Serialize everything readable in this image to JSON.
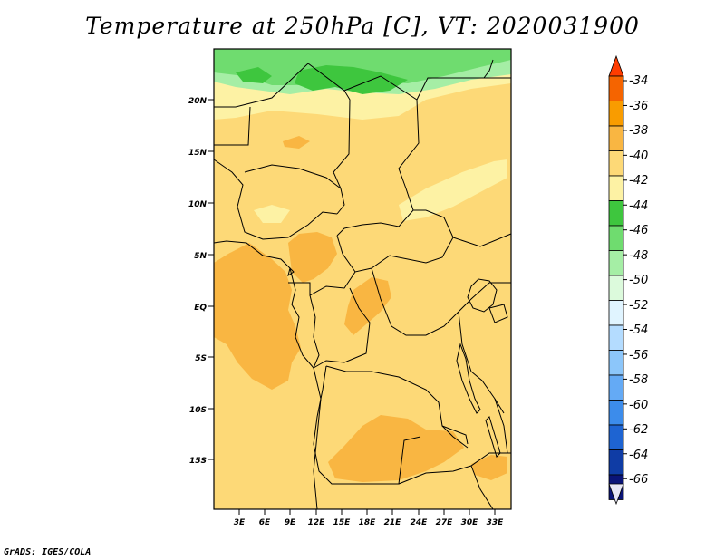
{
  "title": "Temperature at 250hPa [C], VT: 2020031900",
  "footer": "GrADS: IGES/COLA",
  "map": {
    "y_ticks": [
      "20N",
      "15N",
      "10N",
      "5N",
      "EQ",
      "5S",
      "10S",
      "15S"
    ],
    "x_ticks": [
      "3E",
      "6E",
      "9E",
      "12E",
      "15E",
      "18E",
      "21E",
      "24E",
      "27E",
      "30E",
      "33E"
    ],
    "colors": {
      "background": "#fdd977",
      "orange": "#f9b642",
      "pale_yellow": "#fdf2a4",
      "green_dark": "#3ec63e",
      "green": "#6fdc6f",
      "green_light": "#a5eea5"
    }
  },
  "colorbar": {
    "labels": [
      "-34",
      "-36",
      "-38",
      "-40",
      "-42",
      "-44",
      "-46",
      "-48",
      "-50",
      "-52",
      "-54",
      "-56",
      "-58",
      "-60",
      "-62",
      "-64",
      "-66"
    ],
    "top_color": "#ff3c00",
    "bottom_color": "#e6e6f5",
    "colors": [
      "#f56400",
      "#f99c00",
      "#f9b642",
      "#fdd977",
      "#fdf2a4",
      "#3ec63e",
      "#6fdc6f",
      "#a5eea5",
      "#dcfadc",
      "#e0f4ff",
      "#b4dcff",
      "#8cc6fa",
      "#64aaf5",
      "#3c8ceb",
      "#1e64d2",
      "#0f3ca5",
      "#0a1478"
    ]
  }
}
